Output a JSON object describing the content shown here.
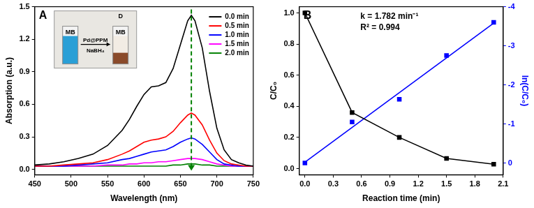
{
  "chart_data": [
    {
      "type": "line",
      "title": "A",
      "x_label": "Wavelength (nm)",
      "y_label": "Absorption (a.u.)",
      "x": [
        450,
        470,
        490,
        510,
        530,
        550,
        570,
        580,
        590,
        600,
        610,
        620,
        630,
        640,
        650,
        660,
        665,
        670,
        680,
        690,
        700,
        710,
        720,
        730,
        740,
        750
      ],
      "series": [
        {
          "name": "0.0 min",
          "color": "#000000",
          "values": [
            0.04,
            0.05,
            0.07,
            0.1,
            0.14,
            0.22,
            0.36,
            0.46,
            0.58,
            0.69,
            0.76,
            0.77,
            0.8,
            0.93,
            1.15,
            1.37,
            1.42,
            1.37,
            1.12,
            0.72,
            0.38,
            0.18,
            0.09,
            0.06,
            0.04,
            0.03
          ]
        },
        {
          "name": "0.5 min",
          "color": "#ff0000",
          "values": [
            0.03,
            0.03,
            0.04,
            0.05,
            0.06,
            0.09,
            0.14,
            0.17,
            0.21,
            0.25,
            0.27,
            0.28,
            0.3,
            0.35,
            0.43,
            0.5,
            0.52,
            0.5,
            0.41,
            0.27,
            0.15,
            0.08,
            0.05,
            0.04,
            0.03,
            0.03
          ]
        },
        {
          "name": "1.0 min",
          "color": "#0000ff",
          "values": [
            0.03,
            0.03,
            0.03,
            0.04,
            0.05,
            0.06,
            0.09,
            0.1,
            0.12,
            0.14,
            0.16,
            0.17,
            0.18,
            0.21,
            0.25,
            0.28,
            0.29,
            0.28,
            0.23,
            0.16,
            0.09,
            0.05,
            0.04,
            0.03,
            0.03,
            0.03
          ]
        },
        {
          "name": "1.5 min",
          "color": "#ff00ff",
          "values": [
            0.03,
            0.03,
            0.03,
            0.03,
            0.03,
            0.04,
            0.04,
            0.05,
            0.05,
            0.06,
            0.06,
            0.07,
            0.07,
            0.08,
            0.09,
            0.1,
            0.1,
            0.1,
            0.09,
            0.07,
            0.05,
            0.04,
            0.03,
            0.03,
            0.03,
            0.03
          ]
        },
        {
          "name": "2.0 min",
          "color": "#008000",
          "values": [
            0.03,
            0.03,
            0.03,
            0.03,
            0.03,
            0.03,
            0.03,
            0.03,
            0.03,
            0.03,
            0.03,
            0.03,
            0.03,
            0.04,
            0.04,
            0.05,
            0.05,
            0.05,
            0.04,
            0.04,
            0.03,
            0.03,
            0.03,
            0.03,
            0.03,
            0.03
          ]
        }
      ],
      "xlim": [
        450,
        750
      ],
      "xticks": [
        450,
        500,
        550,
        600,
        650,
        700,
        750
      ],
      "ylim": [
        -0.05,
        1.5
      ],
      "yticks": [
        {
          "value": 0,
          "label": "0.0"
        },
        0.3,
        0.6,
        0.9,
        1.2,
        1.5
      ],
      "grid": false,
      "legend": "upper right",
      "peak_wavelength": 665,
      "annotations": [
        "MB",
        "Pd@PPM",
        "NaBH₄",
        "D",
        "MB"
      ]
    },
    {
      "type": "line",
      "title": "B",
      "x_label": "Reaction time (min)",
      "y_label": "C/C₀",
      "y2_label": "ln(C/C₀)",
      "x": [
        0,
        0.5,
        1,
        1.5,
        2
      ],
      "series": [
        {
          "color": "#000000",
          "marker": "square",
          "line_style": "solid",
          "values": [
            1.0,
            0.36,
            0.2,
            0.065,
            0.028
          ]
        },
        {
          "color": "#0000ff",
          "marker": "square",
          "line_style": "none",
          "axis": "y2",
          "values": [
            0,
            -1.05,
            -1.63,
            -2.75,
            -3.6
          ]
        },
        {
          "color": "#0000ff",
          "marker": "none",
          "line_style": "solid",
          "axis": "y2",
          "x": [
            0,
            2
          ],
          "values": [
            -0.02,
            -3.58
          ]
        }
      ],
      "xlim": [
        -0.06,
        2.1
      ],
      "xticks": [
        {
          "value": 0,
          "label": "0.0"
        },
        0.3,
        0.6,
        0.9,
        1.2,
        1.5,
        1.8,
        2.1
      ],
      "ylim": [
        -0.04,
        1.04
      ],
      "yticks": [
        {
          "value": 0,
          "label": "0.0"
        },
        0.2,
        0.4,
        0.6,
        0.8,
        {
          "value": 1,
          "label": "1.0"
        }
      ],
      "y2lim": [
        0.3,
        -4
      ],
      "y2ticks": [
        0,
        -1,
        -2,
        -3,
        -4
      ],
      "grid": false,
      "annotations": [
        "k = 1.782 min⁻¹",
        "R² = 0.994"
      ]
    }
  ]
}
